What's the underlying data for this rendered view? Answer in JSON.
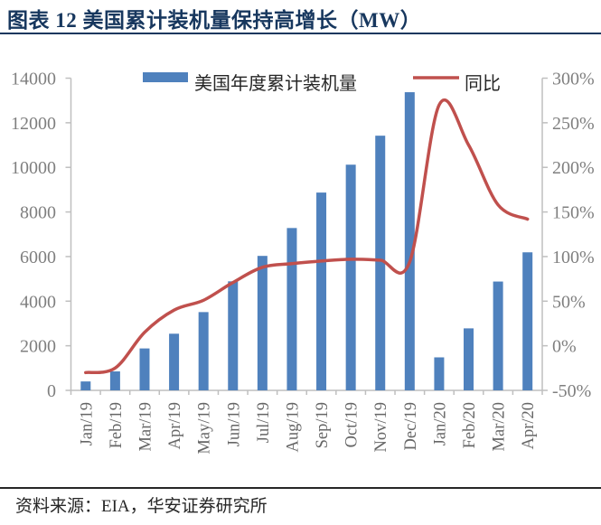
{
  "header": {
    "title": "图表 12 美国累计装机量保持高增长（MW）"
  },
  "footer": {
    "source": "资料来源：EIA，华安证券研究所"
  },
  "colors": {
    "bar": "#4f81bd",
    "line": "#c0504d",
    "title_navy": "#17375e",
    "axis_line": "#bfbfbf",
    "tick_label": "#7f7f7f",
    "x_label": "#666666",
    "legend_text": "#262626"
  },
  "chart_data": {
    "type": "bar",
    "title": "图表 12 美国累计装机量保持高增长（MW）",
    "xlabel": "",
    "ylabel": "",
    "categories": [
      "Jan/19",
      "Feb/19",
      "Mar/19",
      "Apr/19",
      "May/19",
      "Jun/19",
      "Jul/19",
      "Aug/19",
      "Sep/19",
      "Oct/19",
      "Nov/19",
      "Dec/19",
      "Jan/20",
      "Feb/20",
      "Mar/20",
      "Apr/20"
    ],
    "series": [
      {
        "name": "美国年度累计装机量",
        "type": "bar",
        "axis": "left",
        "unit": "MW",
        "values": [
          400,
          850,
          1880,
          2540,
          3510,
          4890,
          6030,
          7280,
          8870,
          10120,
          11420,
          13370,
          1480,
          2780,
          4880,
          6190
        ]
      },
      {
        "name": "同比",
        "type": "line",
        "axis": "right",
        "unit": "%",
        "values": [
          -30,
          -25,
          15,
          40,
          51,
          71,
          88,
          92,
          95,
          97,
          96,
          94,
          270,
          225,
          158,
          142
        ]
      }
    ],
    "left_axis": {
      "min": 0,
      "max": 14000,
      "step": 2000,
      "tick_labels": [
        "0",
        "2000",
        "4000",
        "6000",
        "8000",
        "10000",
        "12000",
        "14000"
      ]
    },
    "right_axis": {
      "min": -50,
      "max": 300,
      "step": 50,
      "tick_labels": [
        "-50%",
        "0%",
        "50%",
        "100%",
        "150%",
        "200%",
        "250%",
        "300%"
      ]
    },
    "legend_position": "top",
    "gridlines": false,
    "line_smoothed": true
  }
}
